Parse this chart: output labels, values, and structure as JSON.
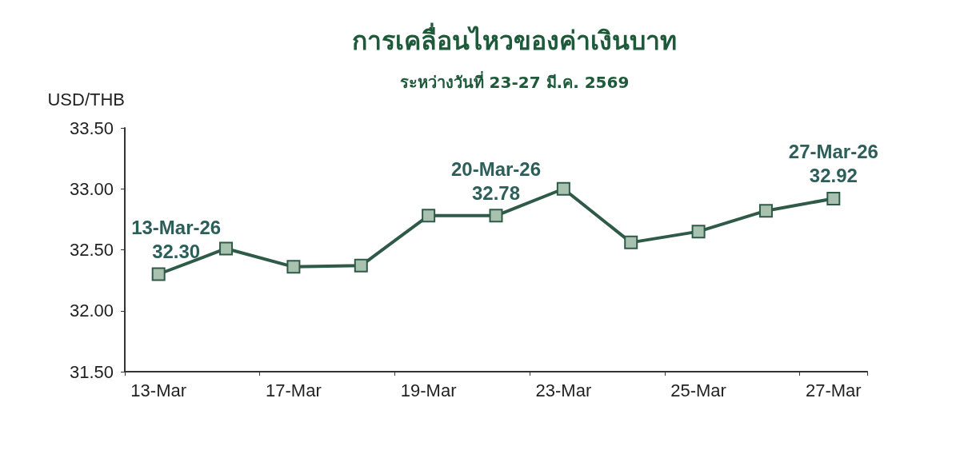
{
  "chart_data": {
    "type": "line",
    "title": "การเคลื่อนไหวของค่าเงินบาท",
    "subtitle": "ระหว่างวันที่ 23-27 มี.ค. 2569",
    "ylabel": "USD/THB",
    "categories": [
      "13-Mar",
      null,
      "17-Mar",
      null,
      "19-Mar",
      null,
      "23-Mar",
      null,
      "25-Mar",
      null,
      "27-Mar"
    ],
    "series": [
      {
        "color": "#2f5a48",
        "values": [
          32.3,
          32.51,
          32.36,
          32.37,
          32.78,
          32.78,
          33.0,
          32.56,
          32.65,
          32.82,
          32.92
        ],
        "value_labels": [
          "13-Mar-26\n32.30",
          null,
          null,
          null,
          null,
          "20-Mar-26\n32.78",
          null,
          null,
          null,
          null,
          "27-Mar-26\n32.92"
        ]
      }
    ],
    "ylim": [
      31.5,
      33.5
    ],
    "yticks": [
      {
        "value": 31.5,
        "label": "31.50"
      },
      {
        "value": 32,
        "label": "32.00"
      },
      {
        "value": 32.5,
        "label": "32.50"
      },
      {
        "value": 33,
        "label": "33.00"
      },
      {
        "value": 33.5,
        "label": "33.50"
      }
    ],
    "grid": false,
    "marker": "square",
    "line_style": "solid"
  }
}
